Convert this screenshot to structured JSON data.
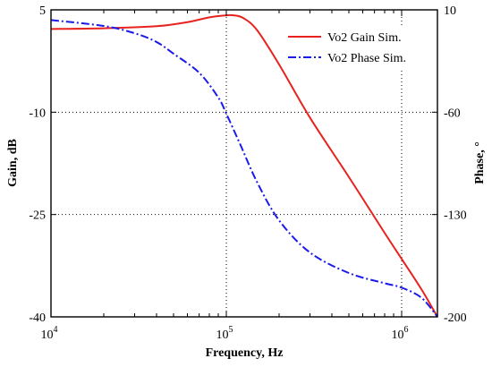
{
  "chart_data": {
    "type": "line",
    "xlabel": "Frequency, Hz",
    "ylabel": "Gain, dB",
    "y2label": "Phase,  °",
    "x_scale": "log",
    "xlim": [
      10000,
      1600000
    ],
    "ylim": [
      -40,
      5
    ],
    "y2lim": [
      -200,
      10
    ],
    "grid": true,
    "grid_style": "dotted",
    "legend_position": "top-right",
    "x_ticks": [
      {
        "base": "10",
        "exp": "4",
        "value": 10000
      },
      {
        "base": "10",
        "exp": "5",
        "value": 100000
      },
      {
        "base": "10",
        "exp": "6",
        "value": 1000000
      }
    ],
    "y_ticks": [
      {
        "label": "5",
        "value": 5
      },
      {
        "label": "-10",
        "value": -10
      },
      {
        "label": "-25",
        "value": -25
      },
      {
        "label": "-40",
        "value": -40
      }
    ],
    "y2_ticks": [
      {
        "label": "10",
        "value": 10
      },
      {
        "label": "-60",
        "value": -60
      },
      {
        "label": "-130",
        "value": -130
      },
      {
        "label": "-200",
        "value": -200
      }
    ],
    "series": [
      {
        "name": "Vo2 Gain Sim.",
        "axis": "left",
        "color": "#e8231f",
        "style": "solid",
        "x": [
          10000,
          20000,
          40000,
          60000,
          80000,
          100000,
          110000,
          125000,
          150000,
          200000,
          300000,
          500000,
          800000,
          1000000,
          1300000,
          1600000
        ],
        "y": [
          2.2,
          2.3,
          2.6,
          3.2,
          3.9,
          4.2,
          4.2,
          3.8,
          2.0,
          -3.0,
          -10.8,
          -19.5,
          -27.7,
          -31.5,
          -36.0,
          -40.0
        ]
      },
      {
        "name": "Vo2 Phase Sim.",
        "axis": "right",
        "color": "#1a1aeb",
        "style": "dashdot",
        "x": [
          10000,
          20000,
          30000,
          40000,
          50000,
          70000,
          90000,
          100000,
          120000,
          150000,
          200000,
          300000,
          500000,
          800000,
          1000000,
          1300000,
          1600000
        ],
        "y": [
          3,
          -1,
          -6,
          -12,
          -20,
          -33,
          -50,
          -61,
          -82,
          -108,
          -134,
          -156,
          -170,
          -177,
          -180,
          -187,
          -200
        ]
      }
    ]
  }
}
